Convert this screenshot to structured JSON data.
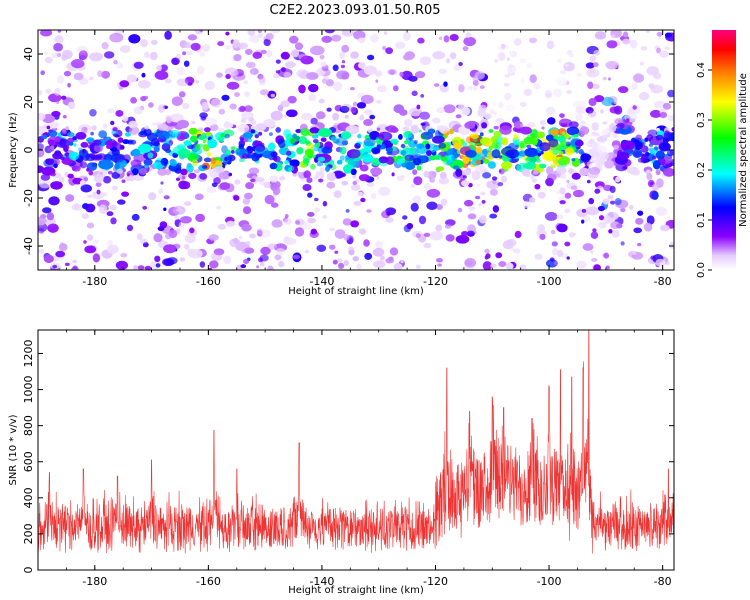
{
  "title": "C2E2.2023.093.01.50.R05",
  "chart_data": [
    {
      "type": "heatmap",
      "xlabel": "Height of straight line (km)",
      "ylabel": "Frequency (Hz)",
      "xlim": [
        -190,
        -78
      ],
      "ylim": [
        -50,
        50
      ],
      "xticks": [
        -180,
        -160,
        -140,
        -120,
        -100,
        -80
      ],
      "yticks": [
        -40,
        -20,
        0,
        20,
        40
      ],
      "colorbar": {
        "label": "Normalized spectral amplitude",
        "range": [
          0.0,
          0.48
        ],
        "ticks": [
          "0.0",
          "0.1",
          "0.2",
          "0.3",
          "0.4"
        ],
        "colors": [
          "#ffffff",
          "#8b00ff",
          "#0000ff",
          "#00ffff",
          "#00ff00",
          "#ffff00",
          "#ff8000",
          "#ff0000",
          "#ff0080"
        ]
      },
      "band": {
        "center_freq_hz": 0,
        "half_width_hz": 8,
        "amplitude_by_height": [
          [
            -190,
            0.12
          ],
          [
            -185,
            0.16
          ],
          [
            -180,
            0.14
          ],
          [
            -175,
            0.15
          ],
          [
            -170,
            0.17
          ],
          [
            -165,
            0.16
          ],
          [
            -160,
            0.36
          ],
          [
            -157,
            0.24
          ],
          [
            -155,
            0.2
          ],
          [
            -150,
            0.18
          ],
          [
            -145,
            0.22
          ],
          [
            -143,
            0.3
          ],
          [
            -140,
            0.2
          ],
          [
            -135,
            0.19
          ],
          [
            -130,
            0.2
          ],
          [
            -125,
            0.22
          ],
          [
            -120,
            0.24
          ],
          [
            -115,
            0.4
          ],
          [
            -110,
            0.3
          ],
          [
            -105,
            0.26
          ],
          [
            -100,
            0.3
          ],
          [
            -97,
            0.36
          ],
          [
            -95,
            0.24
          ],
          [
            -93,
            0.05
          ],
          [
            -90,
            0.06
          ],
          [
            -88,
            0.1
          ],
          [
            -85,
            0.14
          ],
          [
            -80,
            0.16
          ],
          [
            -78,
            0.12
          ]
        ]
      }
    },
    {
      "type": "line",
      "xlabel": "Height of straight line (km)",
      "ylabel": "SNR (10 * v/v)",
      "xlim": [
        -190,
        -78
      ],
      "ylim": [
        0,
        1330
      ],
      "xticks": [
        -180,
        -160,
        -140,
        -120,
        -100,
        -80
      ],
      "yticks": [
        0,
        200,
        400,
        600,
        800,
        1000,
        1200
      ],
      "color": "#ee3333",
      "baseline": 200,
      "peaks": [
        {
          "x": -188,
          "y": 540
        },
        {
          "x": -182,
          "y": 560
        },
        {
          "x": -176,
          "y": 520
        },
        {
          "x": -170,
          "y": 610
        },
        {
          "x": -159,
          "y": 775
        },
        {
          "x": -155,
          "y": 560
        },
        {
          "x": -144,
          "y": 705
        },
        {
          "x": -118,
          "y": 1120
        },
        {
          "x": -114,
          "y": 880
        },
        {
          "x": -110,
          "y": 960
        },
        {
          "x": -108,
          "y": 900
        },
        {
          "x": -103,
          "y": 840
        },
        {
          "x": -100,
          "y": 1020
        },
        {
          "x": -98,
          "y": 1110
        },
        {
          "x": -96,
          "y": 1070
        },
        {
          "x": -94,
          "y": 1100
        },
        {
          "x": -93,
          "y": 1330
        },
        {
          "x": -79,
          "y": 560
        }
      ]
    }
  ]
}
